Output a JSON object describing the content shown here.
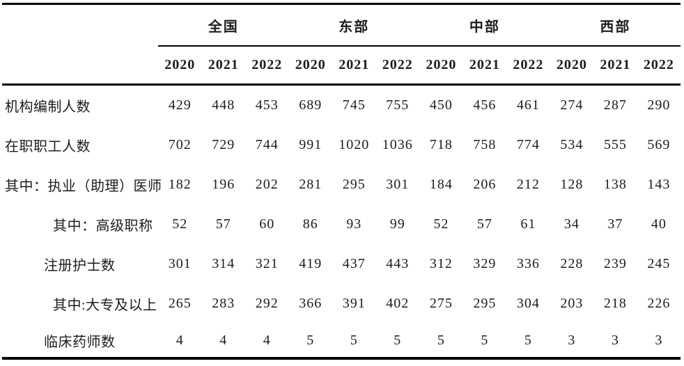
{
  "table": {
    "groups": [
      {
        "label": "全国"
      },
      {
        "label": "东部"
      },
      {
        "label": "中部"
      },
      {
        "label": "西部"
      }
    ],
    "years": [
      "2020",
      "2021",
      "2022",
      "2020",
      "2021",
      "2022",
      "2020",
      "2021",
      "2022",
      "2020",
      "2021",
      "2022"
    ],
    "rows": [
      {
        "label": "机构编制人数",
        "indent": 0,
        "values": [
          "429",
          "448",
          "453",
          "689",
          "745",
          "755",
          "450",
          "456",
          "461",
          "274",
          "287",
          "290"
        ]
      },
      {
        "label": "在职职工人数",
        "indent": 0,
        "values": [
          "702",
          "729",
          "744",
          "991",
          "1020",
          "1036",
          "718",
          "758",
          "774",
          "534",
          "555",
          "569"
        ]
      },
      {
        "label": "其中：执业（助理）医师",
        "indent": 0,
        "values": [
          "182",
          "196",
          "202",
          "281",
          "295",
          "301",
          "184",
          "206",
          "212",
          "128",
          "138",
          "143"
        ]
      },
      {
        "label": "其中：高级职称",
        "indent": 2,
        "values": [
          "52",
          "57",
          "60",
          "86",
          "93",
          "99",
          "52",
          "57",
          "61",
          "34",
          "37",
          "40"
        ]
      },
      {
        "label": "注册护士数",
        "indent": 1,
        "values": [
          "301",
          "314",
          "321",
          "419",
          "437",
          "443",
          "312",
          "329",
          "336",
          "228",
          "239",
          "245"
        ]
      },
      {
        "label": "其中:大专及以上",
        "indent": 2,
        "values": [
          "265",
          "283",
          "292",
          "366",
          "391",
          "402",
          "275",
          "295",
          "304",
          "203",
          "218",
          "226"
        ]
      },
      {
        "label": "临床药师数",
        "indent": 1,
        "values": [
          "4",
          "4",
          "4",
          "5",
          "5",
          "5",
          "5",
          "5",
          "5",
          "3",
          "3",
          "3"
        ]
      }
    ],
    "colors": {
      "text": "#1c1c1c",
      "rule_lines": "#000000",
      "background": "#ffffff"
    }
  }
}
